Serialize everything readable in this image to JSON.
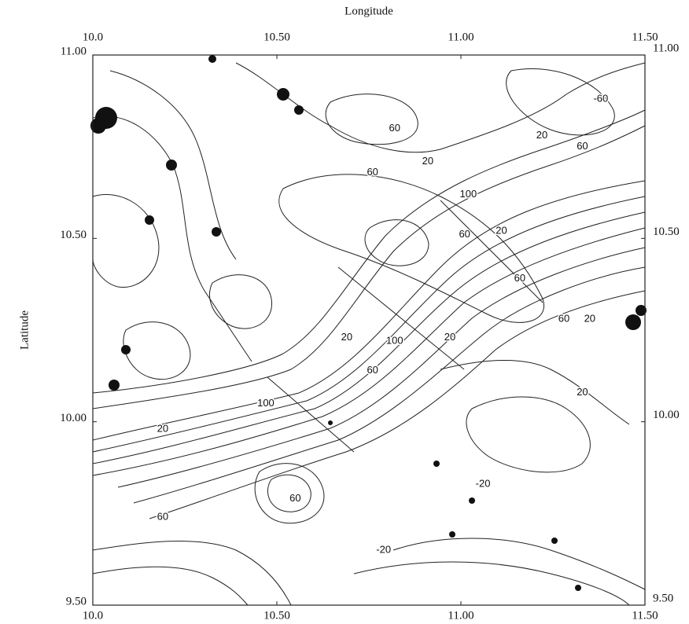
{
  "chart_data": {
    "type": "contour",
    "xlabel": "Longitude",
    "ylabel": "Latitude",
    "xlim": [
      10,
      11.5
    ],
    "ylim": [
      9.5,
      11
    ],
    "xticks": [
      {
        "value": 10,
        "label": "10.0"
      },
      {
        "value": 10.5,
        "label": "10.50"
      },
      {
        "value": 11,
        "label": "11.00"
      },
      {
        "value": 11.5,
        "label": "11.50"
      }
    ],
    "yticks": [
      {
        "value": 9.5,
        "label": "9.50"
      },
      {
        "value": 10,
        "label": "10.00"
      },
      {
        "value": 10.5,
        "label": "10.50"
      },
      {
        "value": 11,
        "label": "11.00"
      }
    ],
    "contour_labels": [
      {
        "text": "100",
        "x": 11.02,
        "y": 10.62
      },
      {
        "text": "60",
        "x": 11.01,
        "y": 10.51
      },
      {
        "text": "20",
        "x": 11.11,
        "y": 10.52
      },
      {
        "text": "60",
        "x": 11.16,
        "y": 10.39
      },
      {
        "text": "60",
        "x": 11.28,
        "y": 10.28
      },
      {
        "text": "20",
        "x": 11.35,
        "y": 10.28
      },
      {
        "text": "20",
        "x": 10.69,
        "y": 10.23
      },
      {
        "text": "20",
        "x": 10.97,
        "y": 10.23
      },
      {
        "text": "100",
        "x": 10.82,
        "y": 10.22
      },
      {
        "text": "60",
        "x": 10.76,
        "y": 10.14
      },
      {
        "text": "100",
        "x": 10.47,
        "y": 10.05
      },
      {
        "text": "20",
        "x": 10.19,
        "y": 9.98
      },
      {
        "text": "60",
        "x": 10.55,
        "y": 9.79
      },
      {
        "text": "60",
        "x": 10.19,
        "y": 9.74
      },
      {
        "text": "-20",
        "x": 11.06,
        "y": 9.83
      },
      {
        "text": "-20",
        "x": 10.79,
        "y": 9.65
      },
      {
        "text": "20",
        "x": 10.91,
        "y": 10.71
      },
      {
        "text": "20",
        "x": 11.22,
        "y": 10.78
      },
      {
        "text": "60",
        "x": 11.33,
        "y": 10.75
      },
      {
        "text": "-60",
        "x": 11.38,
        "y": 10.88
      },
      {
        "text": "60",
        "x": 10.76,
        "y": 10.68
      },
      {
        "text": "60",
        "x": 10.82,
        "y": 10.8
      },
      {
        "text": "20",
        "x": 11.33,
        "y": 10.08
      }
    ]
  }
}
